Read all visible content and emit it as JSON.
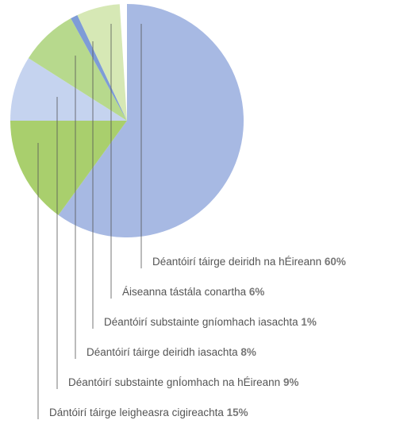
{
  "chart_data": {
    "type": "pie",
    "categories": [
      "Déantóirí táirge deiridh na hÉireann",
      "Dántóirí táirge leigheasra cigireachta",
      "Déantóirí substainte gnÍomhach na hÉireann",
      "Déantóirí táirge deiridh iasachta",
      "Déantóirí substainte gníomhach iasachta",
      "Áiseanna tástála conartha"
    ],
    "values": [
      60,
      15,
      9,
      8,
      1,
      6
    ],
    "value_labels": [
      "60%",
      "15%",
      "9%",
      "8%",
      "1%",
      "6%"
    ],
    "colors": [
      "#a7b9e3",
      "#a9cf6d",
      "#c5d3ef",
      "#b7d98d",
      "#7e9cd7",
      "#d6e8b5"
    ]
  }
}
